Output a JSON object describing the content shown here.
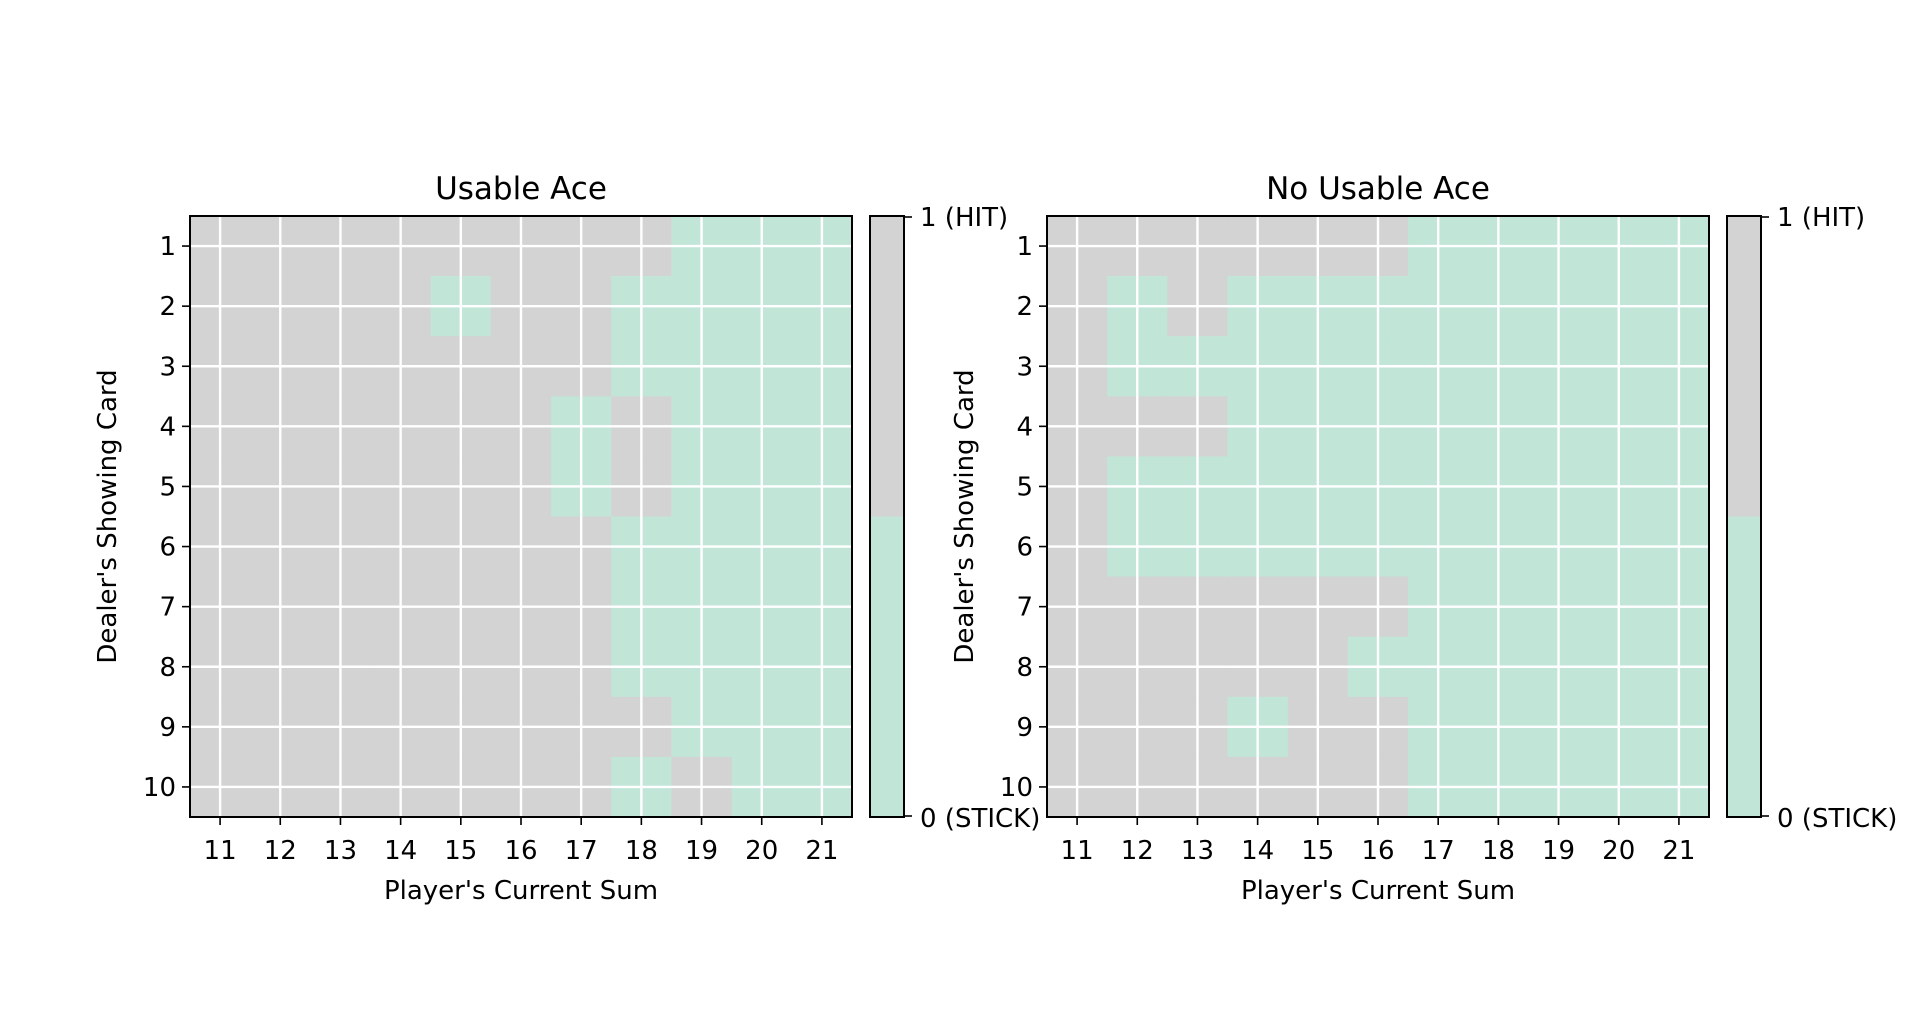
{
  "colors": {
    "hit": "#d3d3d3",
    "stick": "#c1e6d7",
    "grid": "#ffffff",
    "frame": "#000000"
  },
  "chart_data": [
    {
      "type": "heatmap",
      "title": "Usable Ace",
      "xlabel": "Player's Current Sum",
      "ylabel": "Dealer's Showing Card",
      "x": [
        11,
        12,
        13,
        14,
        15,
        16,
        17,
        18,
        19,
        20,
        21
      ],
      "y": [
        1,
        2,
        3,
        4,
        5,
        6,
        7,
        8,
        9,
        10
      ],
      "x_tick_labels": [
        "11",
        "12",
        "13",
        "14",
        "15",
        "16",
        "17",
        "18",
        "19",
        "20",
        "21"
      ],
      "y_tick_labels": [
        "1",
        "2",
        "3",
        "4",
        "5",
        "6",
        "7",
        "8",
        "9",
        "10"
      ],
      "grid": true,
      "colorbar": {
        "min_label": "0 (STICK)",
        "max_label": "1 (HIT)",
        "range": [
          0,
          1
        ]
      },
      "values": [
        [
          1,
          1,
          1,
          1,
          1,
          1,
          1,
          1,
          0,
          0,
          0
        ],
        [
          1,
          1,
          1,
          1,
          0,
          1,
          1,
          0,
          0,
          0,
          0
        ],
        [
          1,
          1,
          1,
          1,
          1,
          1,
          1,
          0,
          0,
          0,
          0
        ],
        [
          1,
          1,
          1,
          1,
          1,
          1,
          0,
          1,
          0,
          0,
          0
        ],
        [
          1,
          1,
          1,
          1,
          1,
          1,
          0,
          1,
          0,
          0,
          0
        ],
        [
          1,
          1,
          1,
          1,
          1,
          1,
          1,
          0,
          0,
          0,
          0
        ],
        [
          1,
          1,
          1,
          1,
          1,
          1,
          1,
          0,
          0,
          0,
          0
        ],
        [
          1,
          1,
          1,
          1,
          1,
          1,
          1,
          0,
          0,
          0,
          0
        ],
        [
          1,
          1,
          1,
          1,
          1,
          1,
          1,
          1,
          0,
          0,
          0
        ],
        [
          1,
          1,
          1,
          1,
          1,
          1,
          1,
          0,
          1,
          0,
          0
        ]
      ]
    },
    {
      "type": "heatmap",
      "title": "No Usable Ace",
      "xlabel": "Player's Current Sum",
      "ylabel": "Dealer's Showing Card",
      "x": [
        11,
        12,
        13,
        14,
        15,
        16,
        17,
        18,
        19,
        20,
        21
      ],
      "y": [
        1,
        2,
        3,
        4,
        5,
        6,
        7,
        8,
        9,
        10
      ],
      "x_tick_labels": [
        "11",
        "12",
        "13",
        "14",
        "15",
        "16",
        "17",
        "18",
        "19",
        "20",
        "21"
      ],
      "y_tick_labels": [
        "1",
        "2",
        "3",
        "4",
        "5",
        "6",
        "7",
        "8",
        "9",
        "10"
      ],
      "grid": true,
      "colorbar": {
        "min_label": "0 (STICK)",
        "max_label": "1 (HIT)",
        "range": [
          0,
          1
        ]
      },
      "values": [
        [
          1,
          1,
          1,
          1,
          1,
          1,
          0,
          0,
          0,
          0,
          0
        ],
        [
          1,
          0,
          1,
          0,
          0,
          0,
          0,
          0,
          0,
          0,
          0
        ],
        [
          1,
          0,
          0,
          0,
          0,
          0,
          0,
          0,
          0,
          0,
          0
        ],
        [
          1,
          1,
          1,
          0,
          0,
          0,
          0,
          0,
          0,
          0,
          0
        ],
        [
          1,
          0,
          0,
          0,
          0,
          0,
          0,
          0,
          0,
          0,
          0
        ],
        [
          1,
          0,
          0,
          0,
          0,
          0,
          0,
          0,
          0,
          0,
          0
        ],
        [
          1,
          1,
          1,
          1,
          1,
          1,
          0,
          0,
          0,
          0,
          0
        ],
        [
          1,
          1,
          1,
          1,
          1,
          0,
          0,
          0,
          0,
          0,
          0
        ],
        [
          1,
          1,
          1,
          0,
          1,
          1,
          0,
          0,
          0,
          0,
          0
        ],
        [
          1,
          1,
          1,
          1,
          1,
          1,
          0,
          0,
          0,
          0,
          0
        ]
      ]
    }
  ]
}
